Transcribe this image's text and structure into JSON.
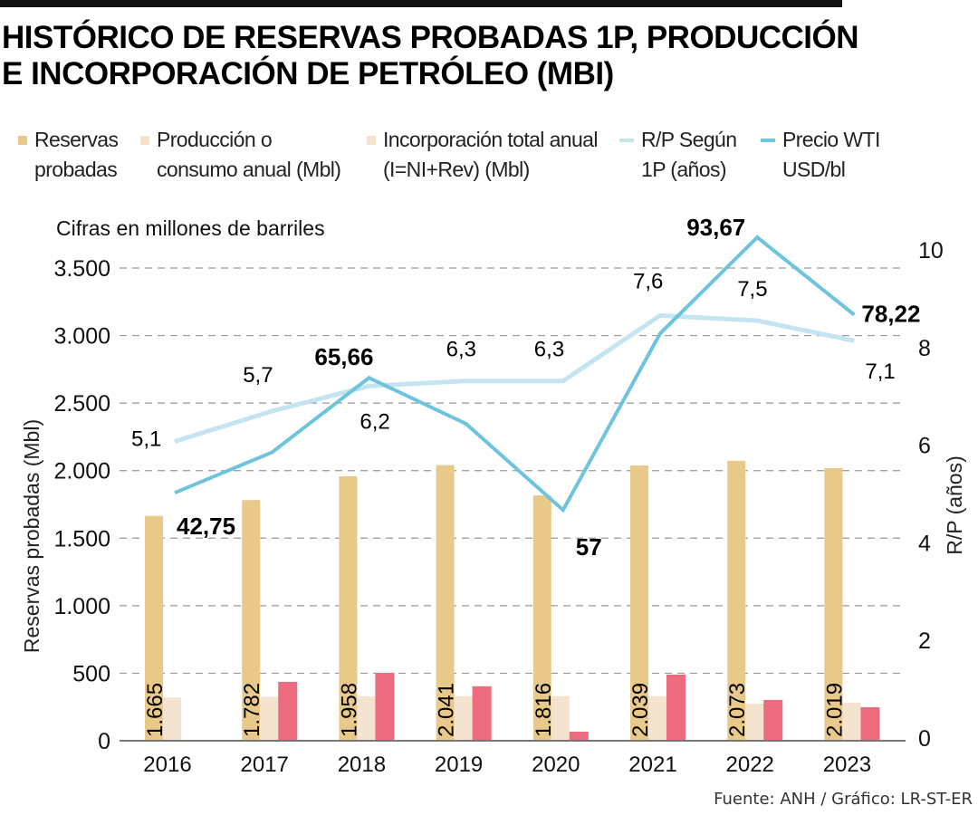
{
  "header": {
    "title_line1": "HISTÓRICO DE RESERVAS PROBADAS 1P, PRODUCCIÓN",
    "title_line2": "E INCORPORACIÓN DE PETRÓLEO (MBI)"
  },
  "legend": [
    {
      "kind": "swatch",
      "color": "#E8C98A",
      "line1": "Reservas",
      "line2": "probadas"
    },
    {
      "kind": "swatch",
      "color": "#F3E3CF",
      "line1": "Producción o",
      "line2": "consumo anual (Mbl)"
    },
    {
      "kind": "swatch",
      "color": "#F3E3CF",
      "line1": "Incorporación total anual",
      "line2": "(I=NI+Rev) (Mbl)"
    },
    {
      "kind": "line",
      "color": "#C4E4F1",
      "line1": "R/P Según",
      "line2": "1P (años)"
    },
    {
      "kind": "line",
      "color": "#6EC3DD",
      "line1": "Precio WTI",
      "line2": "USD/bl"
    }
  ],
  "source": "Fuente: ANH / Gráfico: LR-ST-ER",
  "chart_data": {
    "type": "bar",
    "title": "HISTÓRICO DE RESERVAS PROBADAS 1P, PRODUCCIÓN E INCORPORACIÓN DE PETRÓLEO (MBI)",
    "note": "Cifras en millones de barriles",
    "xlabel": "",
    "ylabel": "Reservas probadas (Mbl)",
    "y2label": "R/P (años)",
    "ylim": [
      0,
      3500
    ],
    "y2lim": [
      0,
      10
    ],
    "yticks": [
      0,
      500,
      1000,
      1500,
      2000,
      2500,
      3000,
      3500
    ],
    "ytick_labels": [
      "0",
      "500",
      "1.000",
      "1.500",
      "2.000",
      "2.500",
      "3.000",
      "3.500"
    ],
    "y2ticks": [
      0,
      2,
      4,
      6,
      8,
      10
    ],
    "grid": true,
    "legend_position": "top",
    "categories": [
      "2016",
      "2017",
      "2018",
      "2019",
      "2020",
      "2021",
      "2022",
      "2023"
    ],
    "series": [
      {
        "name": "Reservas probadas",
        "type": "bar",
        "axis": "left",
        "color": "#E8C98A",
        "values": [
          1665,
          1782,
          1958,
          2041,
          1816,
          2039,
          2073,
          2019
        ],
        "labels": [
          "1.665",
          "1.782",
          "1.958",
          "2.041",
          "1.816",
          "2.039",
          "2.073",
          "2.019"
        ]
      },
      {
        "name": "Producción o consumo anual (Mbl)",
        "type": "bar",
        "axis": "left",
        "color": "#F3E3CF",
        "values": [
          320,
          325,
          330,
          330,
          330,
          330,
          275,
          282
        ]
      },
      {
        "name": "Incorporación total anual (I=NI+Rev) (Mbl)",
        "type": "bar",
        "axis": "left",
        "color": "#EC6B7E",
        "values": [
          null,
          436,
          503,
          403,
          67,
          490,
          302,
          248
        ]
      },
      {
        "name": "R/P Según 1P (años)",
        "type": "line",
        "axis": "right",
        "color": "#C4E4F1",
        "values": [
          5.1,
          5.7,
          6.2,
          6.3,
          6.3,
          7.6,
          7.5,
          7.1
        ],
        "labels": [
          "5,1",
          "5,7",
          "6,2",
          "6,3",
          "6,3",
          "7,6",
          "7,5",
          "7,1"
        ]
      },
      {
        "name": "Precio WTI USD/bl",
        "type": "line",
        "axis": "price",
        "color": "#6EC3DD",
        "values": [
          42.75,
          50.8,
          65.66,
          56.5,
          57,
          74.5,
          93.67,
          78.22
        ],
        "labels": [
          "42,75",
          null,
          "65,66",
          null,
          "57",
          null,
          "93,67",
          "78,22"
        ]
      }
    ]
  }
}
